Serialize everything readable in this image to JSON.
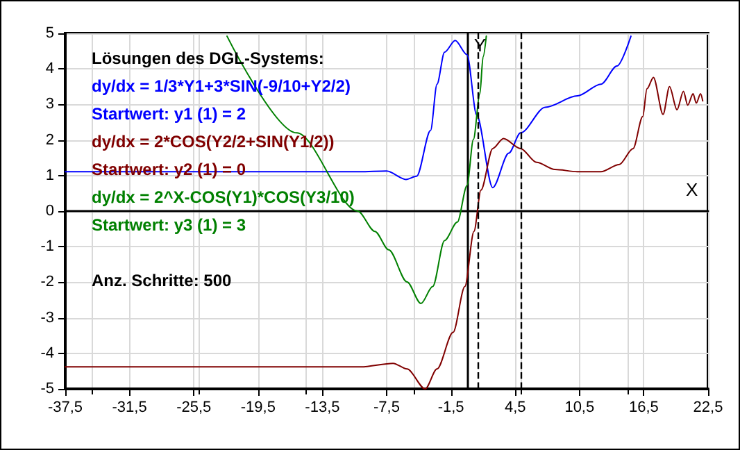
{
  "chart_data": {
    "type": "line",
    "title": "Lösungen des DGL-Systems:",
    "xlabel": "X",
    "ylabel": "Y",
    "annotations": [
      "dy/dx = 1/3*Y1+3*SIN(-9/10+Y2/2)",
      "Startwert: y1 (1) = 2",
      "dy/dx = 2*COS(Y2/2+SIN(Y1/2))",
      "Startwert: y2 (1) = 0",
      "dy/dx = 2^X-COS(Y1)*COS(Y3/10)",
      "Startwert: y3 (1) = 3",
      "Anz. Schritte: 500"
    ],
    "series": [
      {
        "color": "#0000ff",
        "x": [
          -37.5,
          -10,
          -7.5,
          -5.7,
          -4.7,
          -3.4,
          -2.8,
          -2.1,
          -1.1,
          0,
          0.9,
          2.4,
          3.9,
          5,
          7.3,
          10.3,
          12.5,
          14,
          15.3
        ],
        "values": [
          1.11,
          1.11,
          1.13,
          0.89,
          0.98,
          2.27,
          3.57,
          4.47,
          4.8,
          4.4,
          2.7,
          0.66,
          1.63,
          2.2,
          2.92,
          3.24,
          3.57,
          4.08,
          4.92
        ]
      },
      {
        "color": "#800000",
        "x": [
          -37.5,
          -9.9,
          -6.9,
          -5.6,
          -3.9,
          -2.8,
          -1.3,
          -0.2,
          0.65,
          1.3,
          2.4,
          3.4,
          5,
          6.5,
          8.2,
          10.3,
          12.5,
          14.2,
          15.5,
          16.4,
          16.8,
          17.4,
          18.3,
          18.9,
          19.6,
          20.2,
          20.6,
          21.1,
          21.4,
          21.8,
          22
        ],
        "values": [
          -4.38,
          -4.38,
          -4.28,
          -4.44,
          -5,
          -4.44,
          -3.41,
          -2.12,
          -0.57,
          0.59,
          1.76,
          2.04,
          1.76,
          1.37,
          1.17,
          1.11,
          1.11,
          1.31,
          1.76,
          2.66,
          3.44,
          3.76,
          2.72,
          3.5,
          2.85,
          3.37,
          2.98,
          3.3,
          3.04,
          3.3,
          3.1
        ]
      },
      {
        "color": "#008000",
        "x": [
          -22.4,
          -15.9,
          -10.2,
          -8.6,
          -7.3,
          -5.6,
          -4.3,
          -3.2,
          -2.1,
          -0.9,
          0,
          0.6,
          1.2,
          1.5,
          1.8
        ],
        "values": [
          4.92,
          2.2,
          0,
          -0.57,
          -1.09,
          -1.99,
          -2.6,
          -2.12,
          -0.83,
          -0.31,
          0.72,
          2.02,
          3.3,
          4.34,
          4.92
        ]
      }
    ],
    "xlim": [
      -37.5,
      22.5
    ],
    "ylim": [
      -5,
      5
    ],
    "xticks": [
      {
        "value": -37.5,
        "label": "-37,5"
      },
      {
        "value": -31.5,
        "label": "-31,5"
      },
      {
        "value": -25.5,
        "label": "-25,5"
      },
      {
        "value": -19.5,
        "label": "-19,5"
      },
      {
        "value": -13.5,
        "label": "-13,5"
      },
      {
        "value": -7.5,
        "label": "-7,5"
      },
      {
        "value": -1.5,
        "label": "-1,5"
      },
      {
        "value": 4.5,
        "label": "4,5"
      },
      {
        "value": 10.5,
        "label": "10,5"
      },
      {
        "value": 16.5,
        "label": "16,5"
      },
      {
        "value": 22.5,
        "label": "22,5"
      }
    ],
    "yticks": [
      -5,
      -4,
      -3,
      -2,
      -1,
      0,
      1,
      2,
      3,
      4,
      5
    ],
    "ref_lines": [
      {
        "axis": "x",
        "value": 1,
        "color": "#000000",
        "line_style": "dashed"
      },
      {
        "axis": "x",
        "value": 5,
        "color": "#000000",
        "line_style": "dashed"
      }
    ],
    "grid": true,
    "marker": "none",
    "line_style": "solid"
  }
}
